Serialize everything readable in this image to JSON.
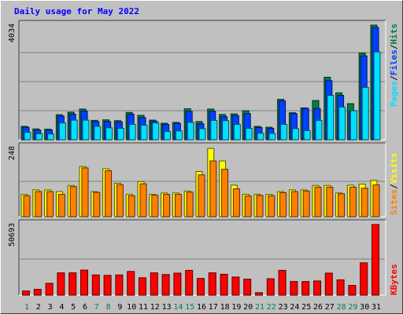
{
  "chart_data": [
    {
      "type": "bar",
      "title": "Daily usage for May 2022",
      "panel": "hits-files-pages",
      "categories": [
        "1",
        "2",
        "3",
        "4",
        "5",
        "6",
        "7",
        "8",
        "9",
        "10",
        "11",
        "12",
        "13",
        "14",
        "15",
        "16",
        "17",
        "18",
        "19",
        "20",
        "21",
        "22",
        "23",
        "24",
        "25",
        "26",
        "27",
        "28",
        "29",
        "30",
        "31"
      ],
      "ylim": [
        0,
        4034
      ],
      "ytick": "4034",
      "legend": [
        "Pages",
        "/",
        "Files",
        "/",
        "Hits"
      ],
      "legend_placement": "right",
      "series": [
        {
          "name": "Hits",
          "values": [
            470,
            380,
            370,
            880,
            970,
            1080,
            680,
            700,
            670,
            960,
            860,
            690,
            580,
            610,
            1090,
            640,
            1080,
            890,
            910,
            1020,
            470,
            440,
            1420,
            950,
            1120,
            1380,
            2200,
            1650,
            1270,
            3050,
            4034
          ]
        },
        {
          "name": "Files",
          "values": [
            440,
            340,
            350,
            830,
            900,
            1010,
            640,
            640,
            630,
            900,
            780,
            650,
            540,
            580,
            1000,
            560,
            1000,
            810,
            850,
            920,
            430,
            400,
            1370,
            920,
            1100,
            1100,
            2080,
            1560,
            1000,
            2950,
            3950
          ]
        },
        {
          "name": "Pages",
          "values": [
            260,
            210,
            200,
            590,
            690,
            690,
            470,
            420,
            400,
            540,
            510,
            590,
            290,
            310,
            610,
            390,
            680,
            670,
            540,
            400,
            230,
            220,
            540,
            390,
            320,
            680,
            1560,
            1150,
            1020,
            1840,
            3090
          ]
        }
      ]
    },
    {
      "type": "bar",
      "panel": "visits-sites",
      "categories": [
        "1",
        "2",
        "3",
        "4",
        "5",
        "6",
        "7",
        "8",
        "9",
        "10",
        "11",
        "12",
        "13",
        "14",
        "15",
        "16",
        "17",
        "18",
        "19",
        "20",
        "21",
        "22",
        "23",
        "24",
        "25",
        "26",
        "27",
        "28",
        "29",
        "30",
        "31"
      ],
      "ylim": [
        0,
        248
      ],
      "ytick": "248",
      "legend": [
        "Sites",
        "/",
        "Visits"
      ],
      "legend_placement": "right",
      "series": [
        {
          "name": "Visits",
          "values": [
            80,
            96,
            96,
            90,
            112,
            180,
            90,
            172,
            120,
            80,
            126,
            80,
            85,
            85,
            92,
            162,
            245,
            200,
            113,
            80,
            80,
            80,
            90,
            96,
            96,
            112,
            112,
            85,
            113,
            117,
            130
          ]
        },
        {
          "name": "Sites",
          "values": [
            75,
            90,
            90,
            80,
            108,
            175,
            87,
            165,
            115,
            75,
            118,
            77,
            80,
            80,
            88,
            150,
            200,
            170,
            100,
            74,
            76,
            75,
            86,
            90,
            92,
            106,
            106,
            82,
            106,
            102,
            114
          ]
        }
      ]
    },
    {
      "type": "bar",
      "panel": "kbytes",
      "categories": [
        "1",
        "2",
        "3",
        "4",
        "5",
        "6",
        "7",
        "8",
        "9",
        "10",
        "11",
        "12",
        "13",
        "14",
        "15",
        "16",
        "17",
        "18",
        "19",
        "20",
        "21",
        "22",
        "23",
        "24",
        "25",
        "26",
        "27",
        "28",
        "29",
        "30",
        "31"
      ],
      "ylim": [
        0,
        50693
      ],
      "ytick": "50693",
      "legend": [
        "KBytes"
      ],
      "legend_placement": "right",
      "series": [
        {
          "name": "KBytes",
          "values": [
            3000,
            4200,
            8500,
            16000,
            16000,
            18000,
            14500,
            14200,
            14500,
            17000,
            12500,
            16000,
            14800,
            15800,
            17800,
            12000,
            16000,
            15000,
            13000,
            11500,
            1800,
            11800,
            17800,
            9800,
            9800,
            10200,
            15800,
            11000,
            7000,
            23200,
            50693
          ]
        }
      ]
    }
  ],
  "colors": {
    "hits": "#008040",
    "files": "#0040ff",
    "pages": "#00e0ff",
    "visits": "#ffff00",
    "sites": "#ff8000",
    "kbytes": "#ff0000",
    "title": "#0000ff",
    "weekend": "#00805c"
  },
  "weekend_days": [
    "1",
    "7",
    "8",
    "14",
    "15",
    "21",
    "22",
    "28",
    "29"
  ]
}
